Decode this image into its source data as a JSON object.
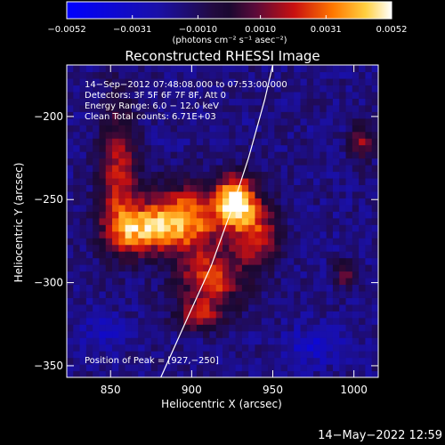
{
  "chart_data": {
    "type": "heatmap",
    "title": "Reconstructed RHESSI Image",
    "xlabel": "Heliocentric X (arcsec)",
    "ylabel": "Heliocentric Y (arcsec)",
    "xlim": [
      823,
      1015
    ],
    "ylim": [
      -357,
      -169
    ],
    "x_ticks": [
      850,
      900,
      950,
      1000
    ],
    "y_ticks": [
      -200,
      -250,
      -300,
      -350
    ],
    "x_tick_labels": [
      "850",
      "900",
      "950",
      "1000"
    ],
    "y_tick_labels": [
      "−200",
      "−250",
      "−300",
      "−350"
    ],
    "colorbar": {
      "range": [
        -0.0052,
        0.0052
      ],
      "tick_values": [
        -0.0052,
        -0.0031,
        -0.001,
        0.001,
        0.0031,
        0.0052
      ],
      "tick_labels": [
        "−0.0052",
        "−0.0031",
        "−0.0010",
        "0.0010",
        "0.0031",
        "0.0052"
      ],
      "unit_label": "(photons cm⁻² s⁻¹ asec⁻²)"
    },
    "info_lines": [
      "14−Sep−2012 07:48:08.000 to 07:53:00.000",
      "Detectors: 3F 5F 6F 7F 8F, Att 0",
      "Energy Range: 6.0 − 12.0 keV",
      "Clean     Total counts: 6.71E+03"
    ],
    "peak_label": "Position of Peak = [927,−250]",
    "peak": [
      927,
      -250
    ],
    "limb_points": [
      [
        881,
        -357
      ],
      [
        898,
        -320
      ],
      [
        912,
        -290
      ],
      [
        925,
        -255
      ],
      [
        935,
        -225
      ],
      [
        945,
        -190
      ],
      [
        950,
        -169
      ]
    ],
    "sources": [
      {
        "x": 927,
        "y": -250,
        "sx": 8,
        "sy": 10,
        "amp": 0.0052
      },
      {
        "x": 895,
        "y": -262,
        "sx": 18,
        "sy": 14,
        "amp": 0.0038
      },
      {
        "x": 865,
        "y": -268,
        "sx": 14,
        "sy": 10,
        "amp": 0.0026
      },
      {
        "x": 855,
        "y": -232,
        "sx": 8,
        "sy": 28,
        "amp": 0.002
      },
      {
        "x": 912,
        "y": -298,
        "sx": 14,
        "sy": 12,
        "amp": 0.0026
      },
      {
        "x": 940,
        "y": -270,
        "sx": 10,
        "sy": 14,
        "amp": 0.0022
      },
      {
        "x": 905,
        "y": -320,
        "sx": 10,
        "sy": 6,
        "amp": 0.0014
      },
      {
        "x": 1005,
        "y": -215,
        "sx": 5,
        "sy": 8,
        "amp": 0.0012
      },
      {
        "x": 995,
        "y": -295,
        "sx": 5,
        "sy": 6,
        "amp": 0.0008
      },
      {
        "x": 975,
        "y": -338,
        "sx": 12,
        "sy": 8,
        "amp": -0.0016
      },
      {
        "x": 845,
        "y": -330,
        "sx": 10,
        "sy": 8,
        "amp": -0.0012
      }
    ],
    "background": -0.0016
  },
  "footer_timestamp": "14−May−2022 12:59"
}
